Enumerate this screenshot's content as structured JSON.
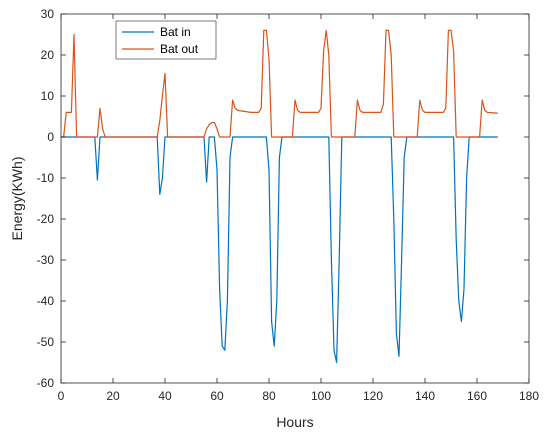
{
  "chart_data": {
    "type": "line",
    "title": "",
    "xlabel": "Hours",
    "ylabel": "Energy(KWh)",
    "xlim": [
      0,
      180
    ],
    "ylim": [
      -60,
      30
    ],
    "xticks": [
      0,
      20,
      40,
      60,
      80,
      100,
      120,
      140,
      160,
      180
    ],
    "yticks": [
      -60,
      -50,
      -40,
      -30,
      -20,
      -10,
      0,
      10,
      20,
      30
    ],
    "grid": false,
    "legend": "top-left",
    "series": [
      {
        "name": "Bat in",
        "color": "#0072BD",
        "points": [
          [
            0,
            0
          ],
          [
            13,
            0
          ],
          [
            14,
            -10.5
          ],
          [
            15,
            0
          ],
          [
            37,
            0
          ],
          [
            38,
            -14
          ],
          [
            39,
            -10
          ],
          [
            40,
            0
          ],
          [
            55,
            0
          ],
          [
            56,
            -11
          ],
          [
            57,
            0
          ],
          [
            59,
            0
          ],
          [
            60,
            -8
          ],
          [
            61,
            -37
          ],
          [
            62,
            -51
          ],
          [
            63,
            -52
          ],
          [
            64,
            -40
          ],
          [
            65,
            -5
          ],
          [
            66,
            0
          ],
          [
            79,
            0
          ],
          [
            80,
            -8
          ],
          [
            81,
            -45
          ],
          [
            82,
            -51
          ],
          [
            83,
            -40
          ],
          [
            84,
            -5
          ],
          [
            85,
            0
          ],
          [
            103,
            0
          ],
          [
            104,
            -30
          ],
          [
            105,
            -52
          ],
          [
            106,
            -55
          ],
          [
            107,
            -30
          ],
          [
            108,
            0
          ],
          [
            127,
            0
          ],
          [
            128,
            -20
          ],
          [
            129,
            -48
          ],
          [
            130,
            -53.5
          ],
          [
            131,
            -30
          ],
          [
            132,
            -5
          ],
          [
            133,
            0
          ],
          [
            151,
            0
          ],
          [
            152,
            -25
          ],
          [
            153,
            -40
          ],
          [
            154,
            -45
          ],
          [
            155,
            -37
          ],
          [
            156,
            -10
          ],
          [
            157,
            0
          ],
          [
            168,
            0
          ]
        ]
      },
      {
        "name": "Bat out",
        "color": "#D95319",
        "points": [
          [
            0,
            0
          ],
          [
            1,
            0
          ],
          [
            2,
            6
          ],
          [
            3,
            6
          ],
          [
            4,
            6
          ],
          [
            5,
            25
          ],
          [
            6,
            0
          ],
          [
            14,
            0
          ],
          [
            15,
            7
          ],
          [
            16,
            2
          ],
          [
            17,
            0
          ],
          [
            37,
            0
          ],
          [
            38,
            4
          ],
          [
            39,
            10
          ],
          [
            40,
            15.5
          ],
          [
            41,
            0
          ],
          [
            55,
            0
          ],
          [
            56,
            2
          ],
          [
            57,
            3
          ],
          [
            58,
            3.5
          ],
          [
            59,
            3.5
          ],
          [
            60,
            2
          ],
          [
            61,
            0
          ],
          [
            65,
            0
          ],
          [
            66,
            9
          ],
          [
            67,
            7
          ],
          [
            68,
            6.5
          ],
          [
            73,
            6
          ],
          [
            76,
            6
          ],
          [
            77,
            7
          ],
          [
            78,
            26
          ],
          [
            79,
            26
          ],
          [
            80,
            19
          ],
          [
            81,
            0
          ],
          [
            89,
            0
          ],
          [
            90,
            9
          ],
          [
            91,
            6.5
          ],
          [
            92,
            6
          ],
          [
            99,
            6
          ],
          [
            100,
            7
          ],
          [
            101,
            21
          ],
          [
            102,
            26
          ],
          [
            103,
            20
          ],
          [
            104,
            0
          ],
          [
            113,
            0
          ],
          [
            114,
            9
          ],
          [
            115,
            6.5
          ],
          [
            116,
            6
          ],
          [
            123,
            6
          ],
          [
            124,
            8
          ],
          [
            125,
            26
          ],
          [
            126,
            26
          ],
          [
            127,
            20
          ],
          [
            128,
            0
          ],
          [
            137,
            0
          ],
          [
            138,
            9
          ],
          [
            139,
            6.5
          ],
          [
            140,
            6
          ],
          [
            147,
            6
          ],
          [
            148,
            7
          ],
          [
            149,
            26
          ],
          [
            150,
            26
          ],
          [
            151,
            21
          ],
          [
            152,
            0
          ],
          [
            161,
            0
          ],
          [
            162,
            9
          ],
          [
            163,
            6.5
          ],
          [
            164,
            6
          ],
          [
            168,
            5.8
          ]
        ]
      }
    ]
  }
}
